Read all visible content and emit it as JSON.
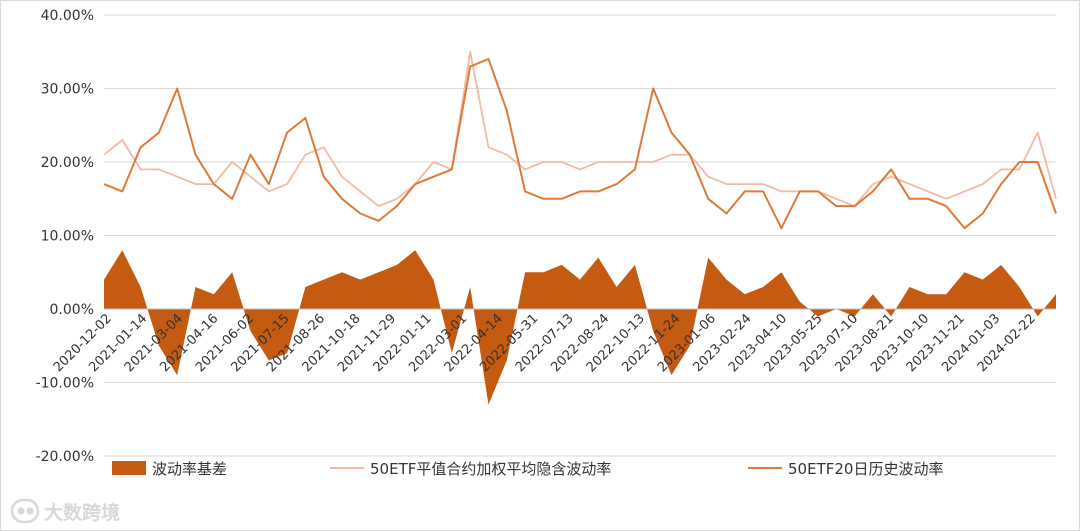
{
  "chart_data": {
    "type": "line",
    "title": "",
    "xlabel": "",
    "ylabel": "",
    "ylim": [
      -0.2,
      0.4
    ],
    "y_tick_labels": [
      "-20.00%",
      "-10.00%",
      "0.00%",
      "10.00%",
      "20.00%",
      "30.00%",
      "40.00%"
    ],
    "x_tick_labels": [
      "2020-12-02",
      "2021-01-14",
      "2021-03-04",
      "2021-04-16",
      "2021-06-02",
      "2021-07-15",
      "2021-08-26",
      "2021-10-18",
      "2021-11-29",
      "2022-01-11",
      "2022-03-01",
      "2022-04-14",
      "2022-05-31",
      "2022-07-13",
      "2022-08-24",
      "2022-10-13",
      "2022-11-24",
      "2023-01-06",
      "2023-02-24",
      "2023-04-10",
      "2023-05-25",
      "2023-07-10",
      "2023-08-21",
      "2023-10-10",
      "2023-11-21",
      "2024-01-03",
      "2024-02-22"
    ],
    "grid": "horizontal",
    "legend_position": "bottom",
    "x": [
      "2020-12-02",
      "2021-01-14",
      "2021-02-08",
      "2021-03-04",
      "2021-03-26",
      "2021-04-16",
      "2021-05-10",
      "2021-06-02",
      "2021-06-24",
      "2021-07-15",
      "2021-08-05",
      "2021-08-26",
      "2021-09-22",
      "2021-10-18",
      "2021-11-08",
      "2021-11-29",
      "2021-12-20",
      "2022-01-11",
      "2022-02-07",
      "2022-03-01",
      "2022-03-23",
      "2022-04-14",
      "2022-05-10",
      "2022-05-31",
      "2022-06-22",
      "2022-07-13",
      "2022-08-03",
      "2022-08-24",
      "2022-09-20",
      "2022-10-13",
      "2022-11-03",
      "2022-11-24",
      "2022-12-15",
      "2023-01-06",
      "2023-02-03",
      "2023-02-24",
      "2023-03-17",
      "2023-04-10",
      "2023-05-04",
      "2023-05-25",
      "2023-06-16",
      "2023-07-10",
      "2023-07-31",
      "2023-08-21",
      "2023-09-14",
      "2023-10-10",
      "2023-10-31",
      "2023-11-21",
      "2023-12-12",
      "2024-01-03",
      "2024-01-29",
      "2024-02-22",
      "2024-03-14"
    ],
    "series": [
      {
        "name": "波动率基差",
        "kind": "area",
        "color": "#c55a11",
        "values": [
          0.04,
          0.08,
          0.03,
          -0.05,
          -0.09,
          0.03,
          0.02,
          0.05,
          -0.03,
          -0.07,
          -0.06,
          0.03,
          0.04,
          0.05,
          0.04,
          0.05,
          0.06,
          0.08,
          0.04,
          -0.06,
          0.03,
          -0.13,
          -0.07,
          0.05,
          0.05,
          0.06,
          0.04,
          0.07,
          0.03,
          0.06,
          -0.03,
          -0.09,
          -0.05,
          0.07,
          0.04,
          0.02,
          0.03,
          0.05,
          0.01,
          -0.01,
          0.0,
          -0.01,
          0.02,
          -0.01,
          0.03,
          0.02,
          0.02,
          0.05,
          0.04,
          0.06,
          0.03,
          -0.01,
          0.02
        ]
      },
      {
        "name": "50ETF平值合约加权平均隐含波动率",
        "kind": "line",
        "color": "#f4b9a3",
        "values": [
          0.21,
          0.23,
          0.19,
          0.19,
          0.18,
          0.17,
          0.17,
          0.2,
          0.18,
          0.16,
          0.17,
          0.21,
          0.22,
          0.18,
          0.16,
          0.14,
          0.15,
          0.17,
          0.2,
          0.19,
          0.35,
          0.22,
          0.21,
          0.19,
          0.2,
          0.2,
          0.19,
          0.2,
          0.2,
          0.2,
          0.2,
          0.21,
          0.21,
          0.18,
          0.17,
          0.17,
          0.17,
          0.16,
          0.16,
          0.16,
          0.15,
          0.14,
          0.17,
          0.18,
          0.17,
          0.16,
          0.15,
          0.16,
          0.17,
          0.19,
          0.19,
          0.24,
          0.15
        ]
      },
      {
        "name": "50ETF20日历史波动率",
        "kind": "line",
        "color": "#de7a38",
        "values": [
          0.17,
          0.16,
          0.22,
          0.24,
          0.3,
          0.21,
          0.17,
          0.15,
          0.21,
          0.17,
          0.24,
          0.26,
          0.18,
          0.15,
          0.13,
          0.12,
          0.14,
          0.17,
          0.18,
          0.19,
          0.33,
          0.34,
          0.27,
          0.16,
          0.15,
          0.15,
          0.16,
          0.16,
          0.17,
          0.19,
          0.3,
          0.24,
          0.21,
          0.15,
          0.13,
          0.16,
          0.16,
          0.11,
          0.16,
          0.16,
          0.14,
          0.14,
          0.16,
          0.19,
          0.15,
          0.15,
          0.14,
          0.11,
          0.13,
          0.17,
          0.2,
          0.2,
          0.13
        ]
      }
    ]
  },
  "watermark": {
    "text": "大数跨境",
    "icon": "logo-icon"
  }
}
